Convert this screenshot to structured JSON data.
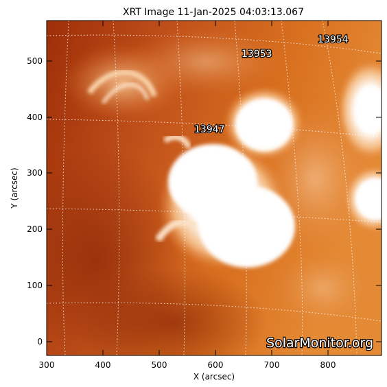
{
  "title": "XRT Image 11-Jan-2025 04:03:13.067",
  "xlabel": "X (arcsec)",
  "ylabel": "Y (arcsec)",
  "x_ticks": [
    "300",
    "400",
    "500",
    "600",
    "700",
    "800"
  ],
  "y_ticks": [
    "0",
    "100",
    "200",
    "300",
    "400",
    "500"
  ],
  "regions": [
    {
      "number": "13947"
    },
    {
      "number": "13953"
    },
    {
      "number": "13954"
    }
  ],
  "watermark": "SolarMonitor.org",
  "colors": {
    "dark": "#a8330a",
    "mid": "#d66a1f",
    "bright": "#f0a060",
    "saturated": "#ffffff",
    "grid": "#ffffff",
    "axes": "#000000"
  }
}
